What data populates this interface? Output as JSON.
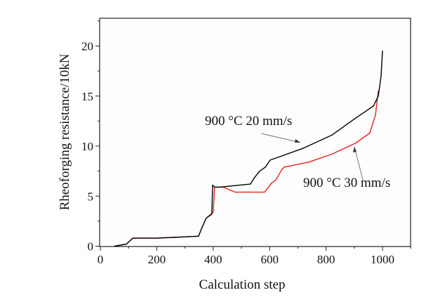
{
  "chart_data": {
    "type": "line",
    "title": "",
    "xlabel": "Calculation step",
    "ylabel": "Rheoforging resistance/10kN",
    "xlim": [
      0,
      1100
    ],
    "ylim": [
      0,
      22.7
    ],
    "xticks": [
      0,
      200,
      400,
      600,
      800,
      1000
    ],
    "xtick_labels": [
      "0",
      "200",
      "400",
      "600",
      "800",
      "1000"
    ],
    "yticks": [
      0,
      5,
      10,
      15,
      20
    ],
    "ytick_labels": [
      "0",
      "5",
      "10",
      "15",
      "20"
    ],
    "grid": false,
    "series": [
      {
        "name": "900 °C 20 mm/s",
        "color": "#000000",
        "x": [
          50,
          92,
          115,
          200,
          348,
          361,
          375,
          395,
          398,
          405,
          423,
          532,
          545,
          565,
          585,
          602,
          622,
          721,
          821,
          905,
          968,
          985,
          995,
          1000
        ],
        "y": [
          0,
          0.2,
          0.8,
          0.8,
          1.0,
          1.9,
          2.8,
          3.2,
          6.1,
          5.9,
          5.9,
          6.2,
          6.8,
          7.5,
          7.9,
          8.6,
          8.8,
          9.8,
          11.1,
          12.8,
          14.0,
          15.0,
          17.0,
          19.5
        ]
      },
      {
        "name": "900 °C 30 mm/s",
        "color": "#e8201a",
        "x": [
          50,
          92,
          115,
          200,
          348,
          361,
          375,
          400,
          405,
          435,
          478,
          582,
          607,
          622,
          644,
          652,
          739,
          821,
          905,
          955,
          975,
          985
        ],
        "y": [
          0,
          0.2,
          0.8,
          0.8,
          1.0,
          1.9,
          2.8,
          3.4,
          5.9,
          5.9,
          5.4,
          5.4,
          6.3,
          6.6,
          7.7,
          7.9,
          8.4,
          9.2,
          10.3,
          11.3,
          13.1,
          15.5
        ]
      }
    ],
    "annotations": [
      {
        "text": "900 °C 20 mm/s",
        "points_to_series": 0
      },
      {
        "text": "900 °C 30 mm/s",
        "points_to_series": 1
      }
    ]
  }
}
